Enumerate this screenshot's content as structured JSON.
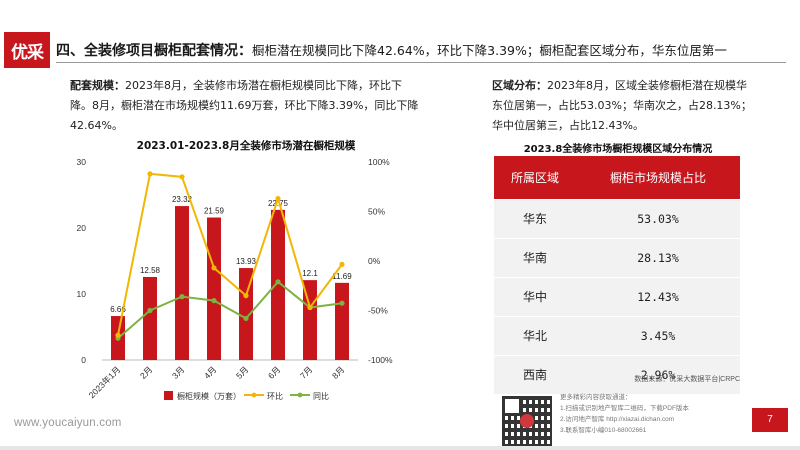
{
  "logo": {
    "text": "优采"
  },
  "header": {
    "heading": "四、全装修项目橱柜配套情况：",
    "heading_detail": "橱柜潜在规模同比下降42.64%，环比下降3.39%；橱柜配套区域分布，华东位居第一"
  },
  "left_text": {
    "lead": "配套规模：",
    "body": "2023年8月，全装修市场潜在橱柜规模同比下降，环比下降。8月，橱柜潜在市场规模约11.69万套，环比下降3.39%，同比下降42.64%。"
  },
  "right_text": {
    "lead": "区域分布：",
    "body": "2023年8月，区域全装修橱柜潜在规模华东位居第一，占比53.03%；华南次之，占28.13%；华中位居第三，占比12.43%。"
  },
  "chart_data": {
    "type": "bar",
    "title": "2023.01-2023.8月全装修市场潜在橱柜规模",
    "categories": [
      "2023年1月",
      "2月",
      "3月",
      "4月",
      "5月",
      "6月",
      "7月",
      "8月"
    ],
    "series": [
      {
        "name": "橱柜规模（万套）",
        "type": "bar",
        "axis": "left",
        "color": "#c8161d",
        "values": [
          6.66,
          12.58,
          23.32,
          21.59,
          13.93,
          22.75,
          12.1,
          11.69
        ]
      },
      {
        "name": "环比",
        "type": "line",
        "axis": "right",
        "color": "#f2b705",
        "values": [
          -75,
          88,
          85,
          -7,
          -35,
          63,
          -47,
          -3.39
        ]
      },
      {
        "name": "同比",
        "type": "line",
        "axis": "right",
        "color": "#7cb342",
        "values": [
          -78,
          -50,
          -36,
          -40,
          -58,
          -21,
          -47,
          -42.64
        ]
      }
    ],
    "ylim_left": [
      0,
      30
    ],
    "yticks_left": [
      "0",
      "10",
      "20",
      "30"
    ],
    "ylim_right": [
      -100,
      100
    ],
    "yticks_right": [
      "-100%",
      "-50%",
      "0%",
      "50%",
      "100%"
    ],
    "grid": false,
    "legend": "bottom"
  },
  "table": {
    "title": "2023.8全装修市场橱柜规模区域分布情况",
    "headers": [
      "所属区域",
      "橱柜市场规模占比"
    ],
    "rows": [
      [
        "华东",
        "53.03%"
      ],
      [
        "华南",
        "28.13%"
      ],
      [
        "华中",
        "12.43%"
      ],
      [
        "华北",
        "3.45%"
      ],
      [
        "西南",
        "2.96%"
      ]
    ]
  },
  "source": "数据来源：优采大数据平台|CRPC",
  "contact": {
    "title": "更多精彩内容获取通道：",
    "lines": [
      "1.扫描或识别地产智库二维码，下载PDF版本",
      "2.访问地产智库 http://xiazai.dichan.com",
      "3.联系智库小编010-68002661"
    ]
  },
  "website": "www.youcaiyun.com",
  "page_number": "7",
  "colors": {
    "brand_red": "#c8161d",
    "mom_line": "#f2b705",
    "yoy_line": "#7cb342"
  }
}
